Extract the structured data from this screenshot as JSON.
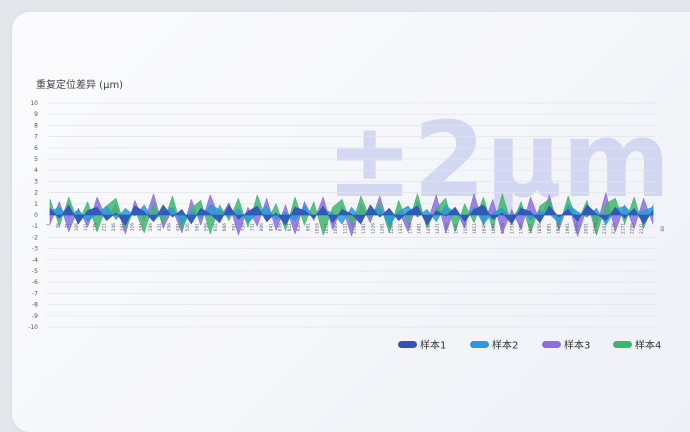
{
  "chart_data": {
    "type": "area",
    "title": "重复定位差异 (μm)",
    "watermark": "±2μm",
    "ylim": [
      -10,
      10
    ],
    "y_ticks": [
      10,
      9,
      8,
      7,
      6,
      5,
      4,
      3,
      2,
      1,
      0,
      -1,
      -2,
      -3,
      -4,
      -5,
      -6,
      -7,
      -8,
      -9,
      -10
    ],
    "x_ticks": [
      "1",
      "36",
      "71",
      "106",
      "141",
      "176",
      "211",
      "246",
      "281",
      "316",
      "351",
      "386",
      "421",
      "456",
      "491",
      "526",
      "561",
      "596",
      "631",
      "666",
      "701",
      "736",
      "771",
      "806",
      "841",
      "876",
      "911",
      "946",
      "981",
      "1016",
      "1051",
      "1086",
      "1121",
      "1156",
      "1191",
      "1226",
      "1261",
      "1296",
      "1331",
      "1366",
      "1401",
      "1436",
      "1471",
      "1506",
      "1541",
      "1576",
      "1611",
      "1646",
      "1681",
      "1716",
      "1751",
      "1786",
      "1821",
      "1856",
      "1891",
      "1926",
      "1961",
      "1996",
      "2031",
      "2066",
      "2101",
      "2136",
      "2171",
      "2206",
      "2241"
    ],
    "x_end_label": "88",
    "legend_position": "bottom-right",
    "series": [
      {
        "name": "样本1",
        "color": "#2f55b8",
        "values": [
          0.6,
          -0.3,
          0.9,
          -0.8,
          0.4,
          0.7,
          -0.5,
          0.2,
          -0.9,
          0.8,
          0.3,
          -0.6,
          0.9,
          -0.2,
          0.5,
          -0.8,
          0.6,
          0.1,
          -0.7,
          0.9,
          -0.4,
          0.3,
          0.8,
          -0.6,
          0.2,
          -0.9,
          0.7,
          0.4,
          -0.3,
          0.8,
          -0.7,
          0.5,
          0.1,
          -0.8,
          0.9,
          -0.2,
          0.6,
          -0.5,
          0.3,
          0.8,
          -0.9,
          0.4,
          -0.1,
          0.7,
          -0.6,
          0.5,
          0.9,
          -0.4,
          0.2,
          -0.8,
          0.6,
          0.3,
          -0.7,
          0.8,
          -0.2,
          0.5,
          -0.6,
          0.9,
          0.1,
          -0.5,
          0.7,
          -0.3,
          0.6,
          -0.8,
          0.4
        ]
      },
      {
        "name": "样本2",
        "color": "#2a9bd6",
        "values": [
          0.3,
          0.7,
          -0.2,
          0.5,
          -0.6,
          0.1,
          0.8,
          -0.4,
          0.6,
          -0.1,
          0.9,
          -0.5,
          0.2,
          0.7,
          -0.8,
          0.4,
          -0.3,
          0.9,
          0.5,
          -0.2,
          0.6,
          -0.7,
          0.1,
          0.8,
          -0.4,
          0.3,
          -0.6,
          0.9,
          -0.1,
          0.5,
          0.2,
          -0.8,
          0.7,
          -0.3,
          0.4,
          0.6,
          -0.9,
          0.3,
          0.8,
          -0.2,
          0.5,
          -0.6,
          0.9,
          0.1,
          -0.4,
          0.7,
          -0.8,
          0.2,
          0.6,
          -0.3,
          0.8,
          -0.5,
          0.4,
          0.1,
          -0.7,
          0.9,
          0.3,
          -0.2,
          0.6,
          -0.9,
          0.5,
          0.8,
          -0.1,
          0.4,
          0.7
        ]
      },
      {
        "name": "样本3",
        "color": "#8a6fe3",
        "values": [
          -0.8,
          1.2,
          -1.5,
          0.6,
          -1.1,
          1.6,
          -0.4,
          1.0,
          -1.7,
          1.3,
          -0.6,
          1.9,
          -1.2,
          0.5,
          -1.6,
          1.4,
          -0.9,
          1.8,
          -0.3,
          1.1,
          -1.8,
          0.7,
          -1.0,
          1.5,
          -1.4,
          0.9,
          -1.7,
          1.2,
          -0.5,
          1.6,
          -1.3,
          0.8,
          -1.9,
          1.0,
          -0.7,
          1.7,
          -1.1,
          0.4,
          -1.5,
          1.3,
          -0.8,
          1.8,
          -1.6,
          0.6,
          -1.2,
          1.9,
          -0.9,
          1.4,
          -1.7,
          0.5,
          -1.3,
          1.6,
          -0.6,
          1.8,
          -1.4,
          1.1,
          -1.9,
          0.7,
          -1.0,
          2.0,
          -1.5,
          0.9,
          -1.2,
          1.5,
          -0.8
        ]
      },
      {
        "name": "样本4",
        "color": "#3fb66e",
        "values": [
          1.4,
          -1.0,
          1.6,
          -0.7,
          1.2,
          -1.5,
          0.8,
          1.5,
          -1.2,
          0.5,
          -1.6,
          1.1,
          -0.8,
          1.7,
          -1.3,
          0.6,
          1.3,
          -1.7,
          0.9,
          -0.5,
          1.5,
          -1.1,
          1.8,
          -0.6,
          1.0,
          -1.4,
          1.6,
          -0.9,
          1.2,
          -1.8,
          0.7,
          1.4,
          -1.0,
          1.7,
          -0.4,
          1.1,
          -1.6,
          1.3,
          -0.8,
          1.9,
          -1.2,
          0.6,
          1.5,
          -1.5,
          1.0,
          -0.7,
          1.6,
          -1.3,
          1.9,
          -0.9,
          1.2,
          -1.6,
          0.8,
          1.4,
          -1.1,
          1.7,
          -0.6,
          1.3,
          -1.8,
          1.0,
          1.5,
          -0.8,
          1.6,
          -1.2,
          0.9
        ]
      }
    ]
  }
}
